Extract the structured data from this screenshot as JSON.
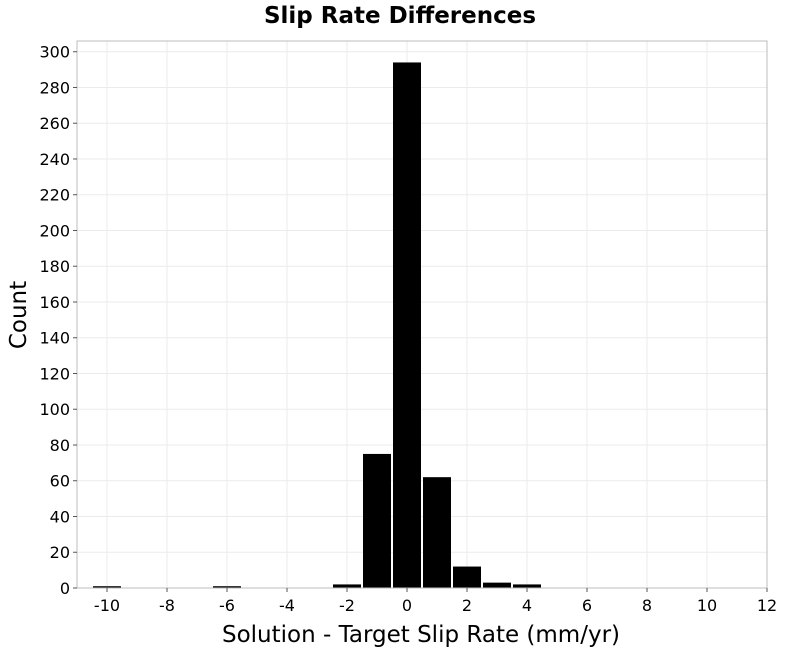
{
  "chart_data": {
    "type": "bar",
    "title": "Slip Rate Differences",
    "xlabel": "Solution - Target Slip Rate (mm/yr)",
    "ylabel": "Count",
    "xlim": [
      -11,
      12
    ],
    "ylim": [
      0,
      306
    ],
    "x_ticks": [
      -10,
      -8,
      -6,
      -4,
      -2,
      0,
      2,
      4,
      6,
      8,
      10,
      12
    ],
    "y_ticks": [
      0,
      20,
      40,
      60,
      80,
      100,
      120,
      140,
      160,
      180,
      200,
      220,
      240,
      260,
      280,
      300
    ],
    "bin_width": 1,
    "bins": [
      {
        "x": -10,
        "count": 1
      },
      {
        "x": -6,
        "count": 1
      },
      {
        "x": -2,
        "count": 2
      },
      {
        "x": -1,
        "count": 75
      },
      {
        "x": 0,
        "count": 294
      },
      {
        "x": 1,
        "count": 62
      },
      {
        "x": 2,
        "count": 12
      },
      {
        "x": 3,
        "count": 3
      },
      {
        "x": 4,
        "count": 2
      }
    ],
    "bar_color": "#000000",
    "grid": true
  }
}
